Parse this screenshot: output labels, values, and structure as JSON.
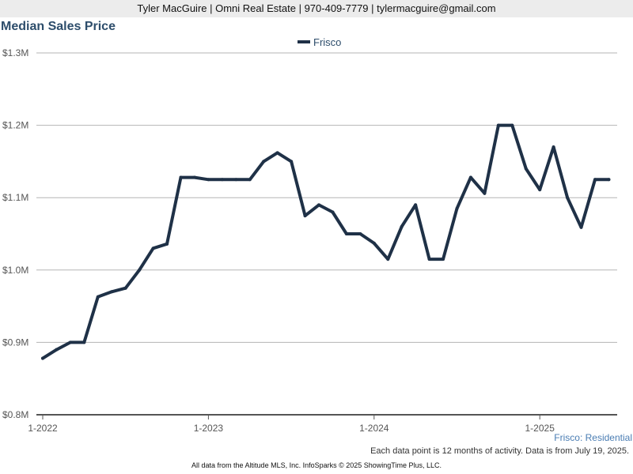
{
  "header": {
    "contact_line": "Tyler MacGuire | Omni Real Estate | 970-409-7779 | tylermacguire@gmail.com"
  },
  "chart_data": {
    "type": "line",
    "title": "Median Sales Price",
    "xlabel": "",
    "ylabel": "",
    "x": [
      "2022-01",
      "2022-02",
      "2022-03",
      "2022-04",
      "2022-05",
      "2022-06",
      "2022-07",
      "2022-08",
      "2022-09",
      "2022-10",
      "2022-11",
      "2022-12",
      "2023-01",
      "2023-02",
      "2023-03",
      "2023-04",
      "2023-05",
      "2023-06",
      "2023-07",
      "2023-08",
      "2023-09",
      "2023-10",
      "2023-11",
      "2023-12",
      "2024-01",
      "2024-02",
      "2024-03",
      "2024-04",
      "2024-05",
      "2024-06",
      "2024-07",
      "2024-08",
      "2024-09",
      "2024-10",
      "2024-11",
      "2024-12",
      "2025-01",
      "2025-02",
      "2025-03",
      "2025-04",
      "2025-05",
      "2025-06"
    ],
    "series": [
      {
        "name": "Frisco",
        "color": "#1f3147",
        "values": [
          878000,
          890000,
          900000,
          900000,
          963000,
          970000,
          975000,
          1000000,
          1030000,
          1036000,
          1128000,
          1128000,
          1125000,
          1125000,
          1125000,
          1125000,
          1150000,
          1162000,
          1150000,
          1075000,
          1090000,
          1080000,
          1050000,
          1050000,
          1037000,
          1015000,
          1060000,
          1090000,
          1015000,
          1015000,
          1085000,
          1128000,
          1106000,
          1200000,
          1200000,
          1140000,
          1111000,
          1170000,
          1100000,
          1059000,
          1125000,
          1125000
        ]
      }
    ],
    "ylim": [
      800000,
      1300000
    ],
    "y_ticks": [
      {
        "value": 800000,
        "label": "$0.8M"
      },
      {
        "value": 900000,
        "label": "$0.9M"
      },
      {
        "value": 1000000,
        "label": "$1.0M"
      },
      {
        "value": 1100000,
        "label": "$1.1M"
      },
      {
        "value": 1200000,
        "label": "$1.2M"
      },
      {
        "value": 1300000,
        "label": "$1.3M"
      }
    ],
    "x_ticks": [
      {
        "index": 0,
        "label": "1-2022"
      },
      {
        "index": 12,
        "label": "1-2023"
      },
      {
        "index": 24,
        "label": "1-2024"
      },
      {
        "index": 36,
        "label": "1-2025"
      }
    ],
    "grid": "horizontal",
    "legend": "top-center"
  },
  "subtitle_right": "Frisco: Residential",
  "note": "Each data point is 12 months of activity. Data is from July 19, 2025.",
  "footer": "All data from the Altitude MLS, Inc. InfoSparks © 2025 ShowingTime Plus, LLC."
}
